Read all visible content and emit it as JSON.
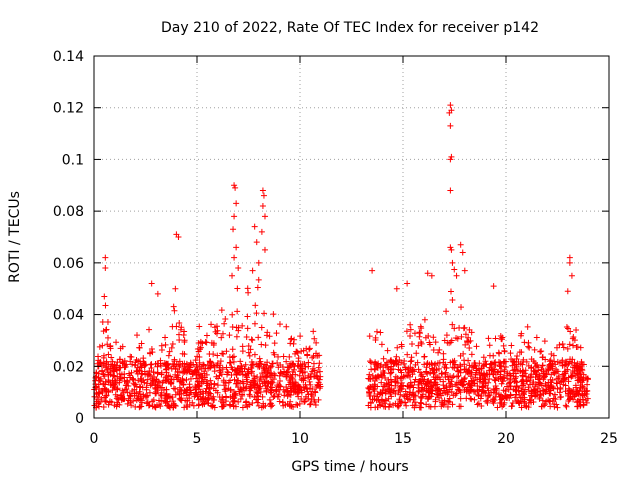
{
  "chart_data": {
    "type": "scatter",
    "title": "Day 210 of 2022, Rate Of TEC Index for receiver p142",
    "xlabel": "GPS time / hours",
    "ylabel": "ROTI / TECUs",
    "xlim": [
      0,
      25
    ],
    "ylim": [
      0,
      0.14
    ],
    "x_ticks": [
      "0",
      "5",
      "10",
      "15",
      "20",
      "25"
    ],
    "y_ticks": [
      "0",
      "0.02",
      "0.04",
      "0.06",
      "0.08",
      "0.1",
      "0.12",
      "0.14"
    ],
    "grid": true,
    "marker": "+",
    "color": "#ff0000",
    "data_gap_hours": [
      11.0,
      13.3
    ],
    "envelope_upper": [
      [
        0.0,
        0.025
      ],
      [
        0.3,
        0.035
      ],
      [
        0.6,
        0.045
      ],
      [
        1.0,
        0.03
      ],
      [
        1.5,
        0.028
      ],
      [
        2.0,
        0.032
      ],
      [
        2.5,
        0.045
      ],
      [
        3.0,
        0.04
      ],
      [
        3.5,
        0.035
      ],
      [
        4.0,
        0.05
      ],
      [
        4.5,
        0.04
      ],
      [
        5.0,
        0.035
      ],
      [
        5.5,
        0.042
      ],
      [
        6.0,
        0.045
      ],
      [
        6.5,
        0.05
      ],
      [
        7.0,
        0.055
      ],
      [
        7.5,
        0.05
      ],
      [
        8.0,
        0.055
      ],
      [
        8.5,
        0.045
      ],
      [
        9.0,
        0.04
      ],
      [
        9.5,
        0.04
      ],
      [
        10.0,
        0.035
      ],
      [
        10.5,
        0.035
      ],
      [
        11.0,
        0.03
      ],
      [
        13.3,
        0.03
      ],
      [
        13.8,
        0.05
      ],
      [
        14.5,
        0.04
      ],
      [
        15.0,
        0.045
      ],
      [
        15.5,
        0.04
      ],
      [
        16.0,
        0.05
      ],
      [
        16.5,
        0.04
      ],
      [
        17.0,
        0.05
      ],
      [
        17.5,
        0.06
      ],
      [
        18.0,
        0.05
      ],
      [
        18.5,
        0.04
      ],
      [
        19.0,
        0.04
      ],
      [
        19.5,
        0.038
      ],
      [
        20.0,
        0.035
      ],
      [
        20.5,
        0.03
      ],
      [
        21.0,
        0.04
      ],
      [
        21.5,
        0.035
      ],
      [
        22.0,
        0.03
      ],
      [
        22.5,
        0.035
      ],
      [
        23.0,
        0.045
      ],
      [
        23.5,
        0.035
      ],
      [
        24.0,
        0.02
      ]
    ],
    "highlight_points": [
      {
        "x": 0.55,
        "y": 0.062
      },
      {
        "x": 0.55,
        "y": 0.058
      },
      {
        "x": 0.5,
        "y": 0.047
      },
      {
        "x": 2.8,
        "y": 0.052
      },
      {
        "x": 3.1,
        "y": 0.048
      },
      {
        "x": 4.0,
        "y": 0.071
      },
      {
        "x": 4.1,
        "y": 0.07
      },
      {
        "x": 3.95,
        "y": 0.05
      },
      {
        "x": 6.8,
        "y": 0.09
      },
      {
        "x": 6.85,
        "y": 0.089
      },
      {
        "x": 6.9,
        "y": 0.083
      },
      {
        "x": 6.8,
        "y": 0.078
      },
      {
        "x": 6.75,
        "y": 0.073
      },
      {
        "x": 6.9,
        "y": 0.066
      },
      {
        "x": 6.8,
        "y": 0.062
      },
      {
        "x": 7.0,
        "y": 0.058
      },
      {
        "x": 6.7,
        "y": 0.055
      },
      {
        "x": 8.2,
        "y": 0.088
      },
      {
        "x": 8.25,
        "y": 0.086
      },
      {
        "x": 8.2,
        "y": 0.082
      },
      {
        "x": 8.3,
        "y": 0.078
      },
      {
        "x": 8.15,
        "y": 0.072
      },
      {
        "x": 7.8,
        "y": 0.074
      },
      {
        "x": 7.9,
        "y": 0.068
      },
      {
        "x": 8.0,
        "y": 0.06
      },
      {
        "x": 8.3,
        "y": 0.065
      },
      {
        "x": 7.7,
        "y": 0.057
      },
      {
        "x": 13.5,
        "y": 0.057
      },
      {
        "x": 14.7,
        "y": 0.05
      },
      {
        "x": 15.2,
        "y": 0.052
      },
      {
        "x": 16.2,
        "y": 0.056
      },
      {
        "x": 16.4,
        "y": 0.055
      },
      {
        "x": 17.3,
        "y": 0.121
      },
      {
        "x": 17.35,
        "y": 0.119
      },
      {
        "x": 17.25,
        "y": 0.118
      },
      {
        "x": 17.3,
        "y": 0.113
      },
      {
        "x": 17.35,
        "y": 0.101
      },
      {
        "x": 17.3,
        "y": 0.1
      },
      {
        "x": 17.3,
        "y": 0.088
      },
      {
        "x": 17.3,
        "y": 0.066
      },
      {
        "x": 17.35,
        "y": 0.065
      },
      {
        "x": 17.4,
        "y": 0.06
      },
      {
        "x": 17.8,
        "y": 0.067
      },
      {
        "x": 17.9,
        "y": 0.064
      },
      {
        "x": 18.0,
        "y": 0.057
      },
      {
        "x": 17.6,
        "y": 0.055
      },
      {
        "x": 19.4,
        "y": 0.051
      },
      {
        "x": 23.1,
        "y": 0.062
      },
      {
        "x": 23.1,
        "y": 0.06
      },
      {
        "x": 23.2,
        "y": 0.055
      },
      {
        "x": 23.0,
        "y": 0.049
      }
    ]
  }
}
